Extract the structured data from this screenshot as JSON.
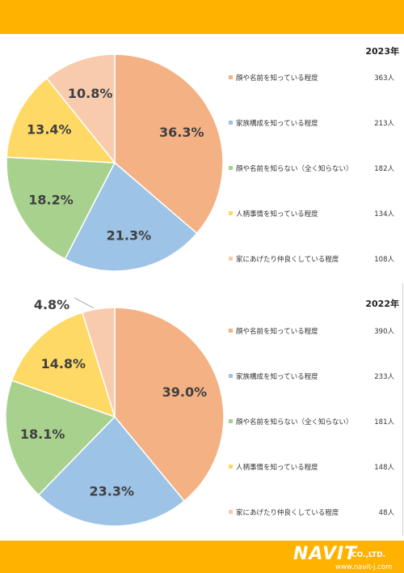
{
  "chart_data": [
    {
      "type": "pie",
      "year_title": "2023年",
      "slices": [
        {
          "label": "顔や名前を知っている程度",
          "count": "363人",
          "pct_label": "36.3%",
          "value": 36.3,
          "color": "#f4b183"
        },
        {
          "label": "家族構成を知っている程度",
          "count": "213人",
          "pct_label": "21.3%",
          "value": 21.3,
          "color": "#9dc3e6"
        },
        {
          "label": "顔や名前を知らない（全く知らない）",
          "count": "182人",
          "pct_label": "18.2%",
          "value": 18.2,
          "color": "#a9d18e"
        },
        {
          "label": "人柄事情を知っている程度",
          "count": "134人",
          "pct_label": "13.4%",
          "value": 13.4,
          "color": "#ffd966"
        },
        {
          "label": "家にあげたり仲良くしている程度",
          "count": "108人",
          "pct_label": "10.8%",
          "value": 10.8,
          "color": "#f8cbad"
        }
      ],
      "legend_position": "right"
    },
    {
      "type": "pie",
      "year_title": "2022年",
      "slices": [
        {
          "label": "顔や名前を知っている程度",
          "count": "390人",
          "pct_label": "39.0%",
          "value": 39.0,
          "color": "#f4b183"
        },
        {
          "label": "家族構成を知っている程度",
          "count": "233人",
          "pct_label": "23.3%",
          "value": 23.3,
          "color": "#9dc3e6"
        },
        {
          "label": "顔や名前を知らない（全く知らない）",
          "count": "181人",
          "pct_label": "18.1%",
          "value": 18.1,
          "color": "#a9d18e"
        },
        {
          "label": "人柄事情を知っている程度",
          "count": "148人",
          "pct_label": "14.8%",
          "value": 14.8,
          "color": "#ffd966"
        },
        {
          "label": "家にあげたり仲良くしている程度",
          "count": "48人",
          "pct_label": "4.8%",
          "value": 4.8,
          "color": "#f8cbad"
        }
      ],
      "legend_position": "right"
    }
  ],
  "branding": {
    "logo_text": "NAVIT",
    "company_suffix": "CO.,LTD.",
    "url": "www.navit-j.com",
    "band_color": "#ffb300"
  }
}
